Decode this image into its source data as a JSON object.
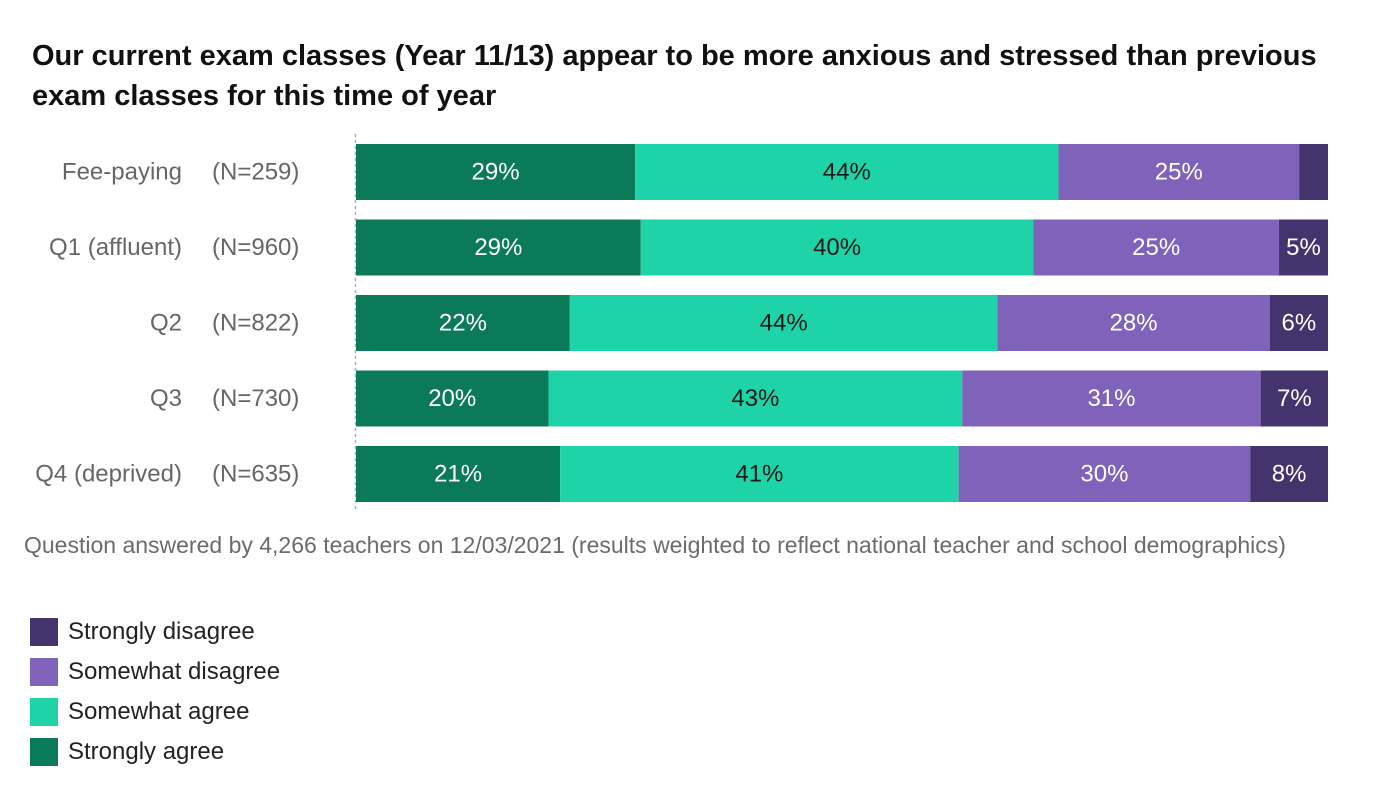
{
  "chart_data": {
    "type": "bar",
    "orientation": "horizontal",
    "stacked": true,
    "normalized_percent": true,
    "title": "Our current exam classes (Year 11/13) appear to be more anxious and stressed than previous exam classes for this time of year",
    "categories": [
      "Fee-paying",
      "Q1 (affluent)",
      "Q2",
      "Q3",
      "Q4 (deprived)"
    ],
    "sample_sizes": [
      "(N=259)",
      "(N=960)",
      "(N=822)",
      "(N=730)",
      "(N=635)"
    ],
    "series": [
      {
        "name": "Strongly agree",
        "color": "#0b7a58",
        "label_color": "#ffffff",
        "values": [
          29,
          29,
          22,
          20,
          21
        ]
      },
      {
        "name": "Somewhat agree",
        "color": "#1fd3a8",
        "label_color": "#1a1a1a",
        "values": [
          44,
          40,
          44,
          43,
          41
        ]
      },
      {
        "name": "Somewhat disagree",
        "color": "#7f62ba",
        "label_color": "#ffffff",
        "values": [
          25,
          25,
          28,
          31,
          30
        ]
      },
      {
        "name": "Strongly disagree",
        "color": "#45336e",
        "label_color": "#ffffff",
        "values": [
          3,
          5,
          6,
          7,
          8
        ]
      }
    ],
    "data_labels": [
      [
        "29%",
        "44%",
        "25%",
        ""
      ],
      [
        "29%",
        "40%",
        "25%",
        "5%"
      ],
      [
        "22%",
        "44%",
        "28%",
        "6%"
      ],
      [
        "20%",
        "43%",
        "31%",
        "7%"
      ],
      [
        "21%",
        "41%",
        "30%",
        "8%"
      ]
    ],
    "legend": {
      "position": "bottom-left",
      "order": [
        "Strongly disagree",
        "Somewhat disagree",
        "Somewhat agree",
        "Strongly agree"
      ]
    },
    "note": "Question answered by 4,266 teachers on 12/03/2021 (results weighted to reflect national teacher and school demographics)"
  }
}
